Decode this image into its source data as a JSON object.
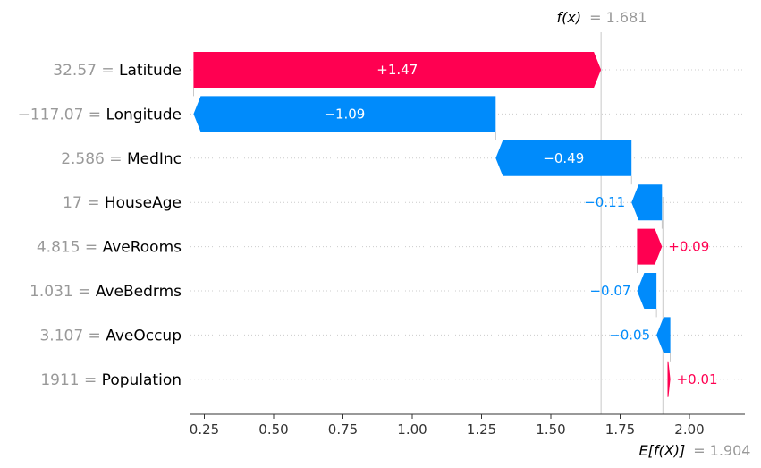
{
  "chart_data": {
    "type": "waterfall",
    "title": "",
    "xlabel": "",
    "ylabel": "",
    "xlim": [
      0.2,
      2.2
    ],
    "xticks": [
      "0.25",
      "0.50",
      "0.75",
      "1.00",
      "1.25",
      "1.50",
      "1.75",
      "2.00"
    ],
    "xtick_values": [
      0.25,
      0.5,
      0.75,
      1.0,
      1.25,
      1.5,
      1.75,
      2.0
    ],
    "base_value": 1.904,
    "output_value": 1.681,
    "base_label": "E[f(X)]",
    "base_value_text": "= 1.904",
    "output_label": "f(x)",
    "output_value_text": "= 1.681",
    "colors": {
      "positive": "#ff0051",
      "negative": "#008bfb"
    },
    "features": [
      {
        "name": "Latitude",
        "value": "32.57",
        "contribution": 1.47,
        "label": "+1.47"
      },
      {
        "name": "Longitude",
        "value": "−117.07",
        "contribution": -1.09,
        "label": "−1.09"
      },
      {
        "name": "MedInc",
        "value": "2.586",
        "contribution": -0.49,
        "label": "−0.49"
      },
      {
        "name": "HouseAge",
        "value": "17",
        "contribution": -0.11,
        "label": "−0.11"
      },
      {
        "name": "AveRooms",
        "value": "4.815",
        "contribution": 0.09,
        "label": "+0.09"
      },
      {
        "name": "AveBedrms",
        "value": "1.031",
        "contribution": -0.07,
        "label": "−0.07"
      },
      {
        "name": "AveOccup",
        "value": "3.107",
        "contribution": -0.05,
        "label": "−0.05"
      },
      {
        "name": "Population",
        "value": "1911",
        "contribution": 0.01,
        "label": "+0.01"
      }
    ]
  }
}
